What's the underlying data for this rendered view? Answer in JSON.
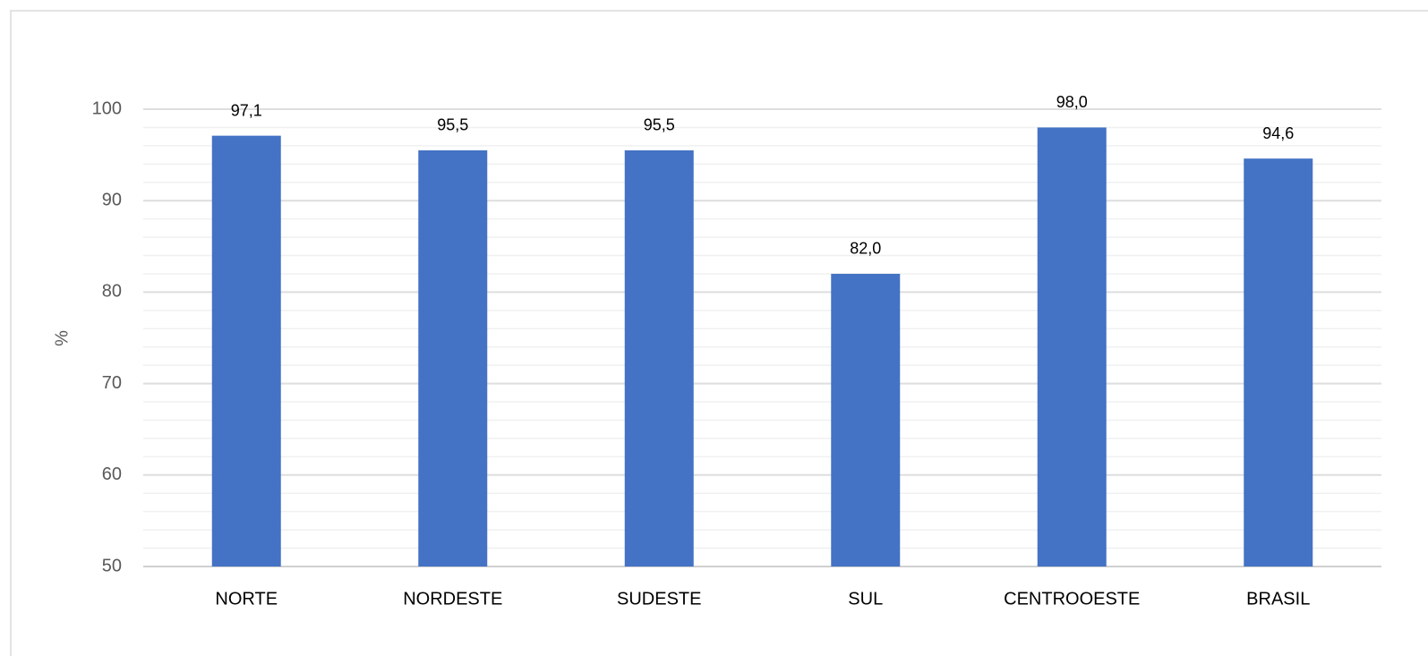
{
  "chart_data": {
    "type": "bar",
    "y_label": "%",
    "categories": [
      "NORTE",
      "NORDESTE",
      "SUDESTE",
      "SUL",
      "CENTROOESTE",
      "BRASIL"
    ],
    "values": [
      97.1,
      95.5,
      95.5,
      82.0,
      98.0,
      94.6
    ],
    "value_labels": [
      "97,1",
      "95,5",
      "95,5",
      "82,0",
      "98,0",
      "94,6"
    ],
    "color": "#4472c4",
    "ylim": [
      50,
      100
    ],
    "yticks": [
      50,
      60,
      70,
      80,
      90,
      100
    ],
    "minor_yticks": [
      52,
      54,
      56,
      58,
      62,
      64,
      66,
      68,
      72,
      74,
      76,
      78,
      82,
      84,
      86,
      88,
      92,
      94,
      96,
      98
    ],
    "grid": true
  }
}
